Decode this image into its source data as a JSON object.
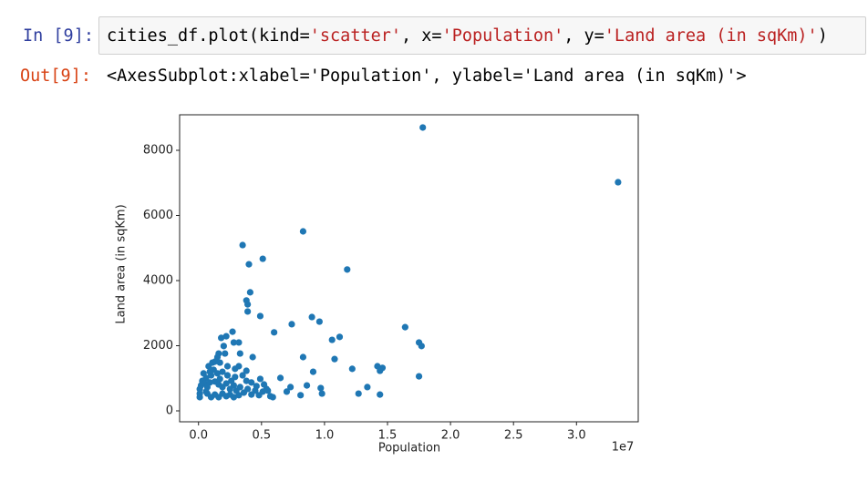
{
  "cell": {
    "input_prompt": "In [9]:",
    "code": [
      "cities_df.plot(kind=",
      "'scatter'",
      ", x=",
      "'Population'",
      ", y=",
      "'Land area (in sqKm)'",
      ")"
    ],
    "output_prompt": "Out[9]:",
    "output_text": "<AxesSubplot:xlabel='Population', ylabel='Land area (in sqKm)'>"
  },
  "chart_data": {
    "type": "scatter",
    "x_label": "Population",
    "y_label": "Land area (in sqKm)",
    "x_offset_label": "1e7",
    "color": "#1f77b4",
    "xlim": [
      -0.15,
      3.49
    ],
    "ylim": [
      -336,
      9091
    ],
    "xticks": [
      {
        "value": 0,
        "label": "0.0"
      },
      {
        "value": 0.5,
        "label": "0.5"
      },
      {
        "value": 1,
        "label": "1.0"
      },
      {
        "value": 1.5,
        "label": "1.5"
      },
      {
        "value": 2,
        "label": "2.0"
      },
      {
        "value": 2.5,
        "label": "2.5"
      },
      {
        "value": 3,
        "label": "3.0"
      }
    ],
    "yticks": [
      0,
      2000,
      4000,
      6000,
      8000
    ],
    "x": [
      1.78,
      3.33,
      0.35,
      0.83,
      0.51,
      0.4,
      1.18,
      0.41,
      0.38,
      0.39,
      0.39,
      0.49,
      0.9,
      0.96,
      0.74,
      1.64,
      0.6,
      0.27,
      1.12,
      1.06,
      0.18,
      0.22,
      0.28,
      0.32,
      1.75,
      1.77,
      0.2,
      0.16,
      0.21,
      0.33,
      0.43,
      0.83,
      1.08,
      0.15,
      0.13,
      0.32,
      1.46,
      1.42,
      1.44,
      1.22,
      0.91,
      0.38,
      0.08,
      0.12,
      1.75,
      0.65,
      0.49,
      0.86,
      0.1,
      0.06,
      0.03,
      0.02,
      0.01,
      0.01,
      0.01,
      0.05,
      0.09,
      0.13,
      0.16,
      0.19,
      0.22,
      0.25,
      0.28,
      0.3,
      0.33,
      0.36,
      0.39,
      0.42,
      0.45,
      0.48,
      0.51,
      0.54,
      0.57,
      0.59,
      0.7,
      0.73,
      0.81,
      0.97,
      0.98,
      1.27,
      1.34,
      1.44,
      0.07,
      0.1,
      0.13,
      0.16,
      0.19,
      0.22,
      0.25,
      0.28,
      0.32,
      0.17,
      0.15,
      0.19,
      0.23,
      0.26,
      0.29,
      0.07,
      0.06,
      0.04,
      0.09,
      0.11,
      0.17,
      0.23,
      0.29,
      0.35,
      0.38,
      0.42,
      0.46,
      0.52,
      0.55
    ],
    "values": [
      8700,
      7020,
      5090,
      5510,
      4670,
      4500,
      4340,
      3640,
      3390,
      3270,
      3050,
      2910,
      2880,
      2740,
      2660,
      2570,
      2410,
      2430,
      2270,
      2180,
      2240,
      2290,
      2100,
      2100,
      2100,
      1990,
      1990,
      1760,
      1760,
      1760,
      1650,
      1650,
      1590,
      1650,
      1510,
      1370,
      1320,
      1370,
      1230,
      1290,
      1200,
      1230,
      1370,
      1260,
      1060,
      1010,
      980,
      780,
      1090,
      1010,
      920,
      780,
      670,
      530,
      420,
      840,
      870,
      900,
      810,
      730,
      840,
      670,
      780,
      620,
      730,
      560,
      670,
      500,
      620,
      480,
      590,
      670,
      450,
      420,
      590,
      730,
      480,
      700,
      530,
      530,
      730,
      500,
      530,
      420,
      500,
      420,
      530,
      450,
      500,
      420,
      480,
      980,
      1150,
      1200,
      1090,
      920,
      1040,
      730,
      590,
      1150,
      1200,
      1480,
      1480,
      1370,
      1290,
      1090,
      920,
      870,
      760,
      810,
      620
    ]
  }
}
